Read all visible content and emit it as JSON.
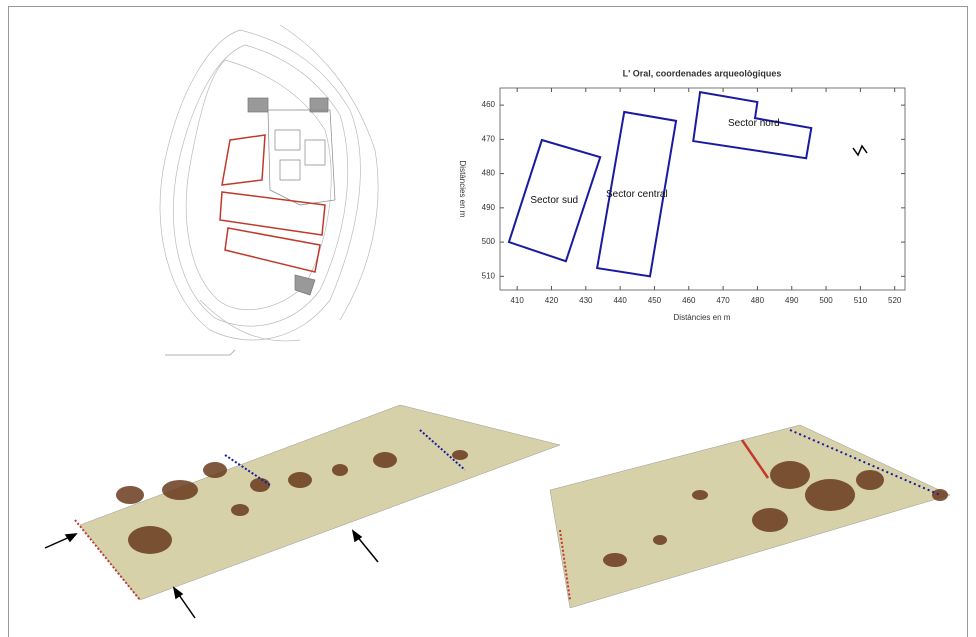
{
  "chart_data": {
    "type": "polygon",
    "title": "L' Oral, coordenades arqueològiques",
    "xlabel": "Distàncies en m",
    "ylabel": "Distàncies en m",
    "xlim": [
      405,
      523
    ],
    "ylim": [
      455,
      514
    ],
    "y_inverted": true,
    "xticks": [
      410,
      420,
      430,
      440,
      450,
      460,
      470,
      480,
      490,
      500,
      510,
      520
    ],
    "yticks": [
      460,
      470,
      480,
      490,
      500,
      510
    ],
    "color": "#1a1aa0",
    "series": [
      {
        "name": "Sector sud",
        "x": [
          407.6,
          417.2,
          434.2,
          424.2
        ],
        "y": [
          500,
          470.2,
          475.2,
          505.6
        ]
      },
      {
        "name": "Sector central",
        "x": [
          433.3,
          441.2,
          456.3,
          448.7
        ],
        "y": [
          507.6,
          462,
          464.6,
          510
        ]
      },
      {
        "name": "Sector nord",
        "x": [
          463.3,
          480,
          479.3,
          495.7,
          494.2,
          461.3
        ],
        "y": [
          456.2,
          459.1,
          463.8,
          466.7,
          475.5,
          470.5
        ]
      }
    ]
  }
}
